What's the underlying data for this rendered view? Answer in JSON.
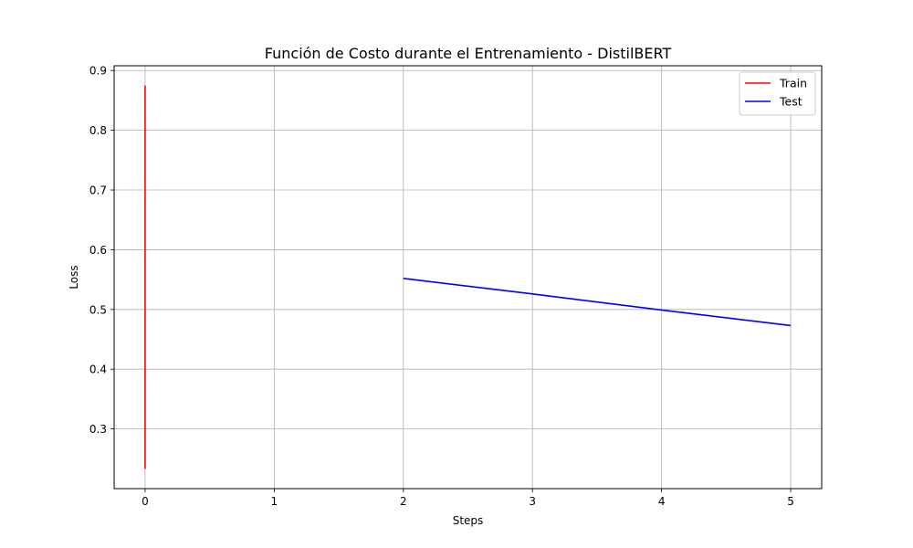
{
  "chart_data": {
    "type": "line",
    "title": "Función de Costo durante el Entrenamiento - DistilBERT",
    "xlabel": "Steps",
    "ylabel": "Loss",
    "xlim": [
      -0.24,
      5.24
    ],
    "ylim": [
      0.2,
      0.908
    ],
    "xticks": [
      0,
      1,
      2,
      3,
      4,
      5
    ],
    "xtick_labels": [
      "0",
      "1",
      "2",
      "3",
      "4",
      "5"
    ],
    "yticks": [
      0.3,
      0.4,
      0.5,
      0.6,
      0.7,
      0.8,
      0.9
    ],
    "ytick_labels": [
      "0.3",
      "0.4",
      "0.5",
      "0.6",
      "0.7",
      "0.8",
      "0.9"
    ],
    "grid": true,
    "legend_position": "top-right",
    "series": [
      {
        "name": "Train",
        "color": "#ff0000",
        "points": [
          [
            0,
            0.875
          ],
          [
            0,
            0.233
          ]
        ]
      },
      {
        "name": "Test",
        "color": "#0000ff",
        "points": [
          [
            2,
            0.552
          ],
          [
            3,
            0.526
          ],
          [
            4,
            0.499
          ],
          [
            5,
            0.473
          ]
        ]
      }
    ]
  }
}
